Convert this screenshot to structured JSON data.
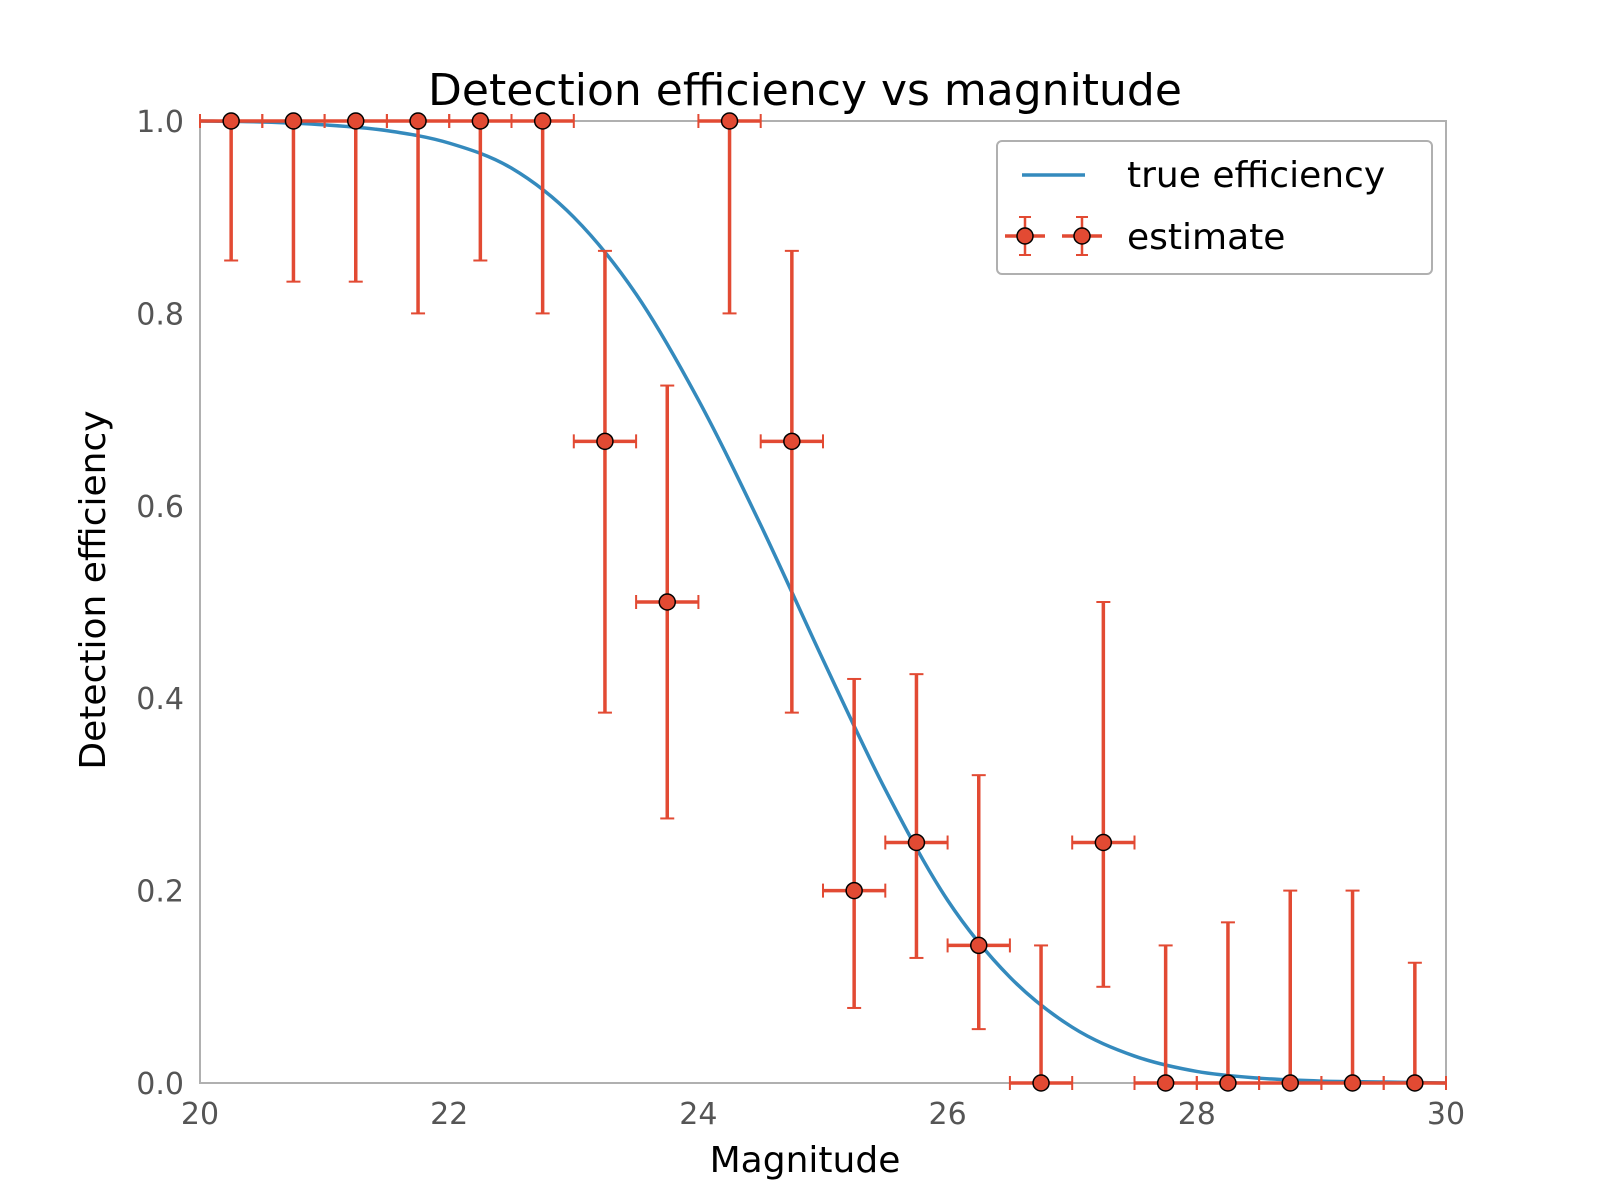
{
  "chart_data": {
    "type": "scatter",
    "title": "Detection efficiency vs magnitude",
    "xlabel": "Magnitude",
    "ylabel": "Detection efficiency",
    "xlim": [
      20,
      30
    ],
    "ylim": [
      0.0,
      1.0
    ],
    "xticks": [
      20,
      22,
      24,
      26,
      28,
      30
    ],
    "xtick_labels": [
      "20",
      "22",
      "24",
      "26",
      "28",
      "30"
    ],
    "yticks": [
      0.0,
      0.2,
      0.4,
      0.6,
      0.8,
      1.0
    ],
    "ytick_labels": [
      "0.0",
      "0.2",
      "0.4",
      "0.6",
      "0.8",
      "1.0"
    ],
    "grid": false,
    "legend": {
      "position": "top-right",
      "entries": [
        "true efficiency",
        "estimate"
      ]
    },
    "series": [
      {
        "name": "true efficiency",
        "kind": "line",
        "color": "#348abd",
        "x": [
          20.0,
          20.5,
          21.0,
          21.5,
          22.0,
          22.5,
          23.0,
          23.5,
          24.0,
          24.5,
          25.0,
          25.5,
          26.0,
          26.5,
          27.0,
          27.5,
          28.0,
          28.5,
          29.0,
          29.5,
          30.0
        ],
        "y": [
          1.0,
          0.999,
          0.996,
          0.99,
          0.977,
          0.951,
          0.9,
          0.82,
          0.71,
          0.58,
          0.44,
          0.305,
          0.19,
          0.11,
          0.058,
          0.028,
          0.012,
          0.005,
          0.002,
          0.001,
          0.0
        ]
      },
      {
        "name": "estimate",
        "kind": "errorbar",
        "color": "#e24a33",
        "x": [
          20.25,
          20.75,
          21.25,
          21.75,
          22.25,
          22.75,
          23.25,
          23.75,
          24.25,
          24.75,
          25.25,
          25.75,
          26.25,
          26.75,
          27.25,
          27.75,
          28.25,
          28.75,
          29.25,
          29.75
        ],
        "y": [
          1.0,
          1.0,
          1.0,
          1.0,
          1.0,
          1.0,
          0.667,
          0.5,
          1.0,
          0.667,
          0.2,
          0.25,
          0.143,
          0.0,
          0.25,
          0.0,
          0.0,
          0.0,
          0.0,
          0.0
        ],
        "y_lower": [
          0.855,
          0.833,
          0.833,
          0.8,
          0.855,
          0.8,
          0.385,
          0.275,
          0.8,
          0.385,
          0.078,
          0.13,
          0.056,
          0.0,
          0.1,
          0.0,
          0.0,
          0.0,
          0.0,
          0.0
        ],
        "y_upper": [
          1.0,
          1.0,
          1.0,
          1.0,
          1.0,
          1.0,
          0.865,
          0.725,
          1.0,
          0.865,
          0.42,
          0.425,
          0.32,
          0.143,
          0.5,
          0.143,
          0.167,
          0.2,
          0.2,
          0.125
        ],
        "x_err": 0.25
      }
    ]
  }
}
